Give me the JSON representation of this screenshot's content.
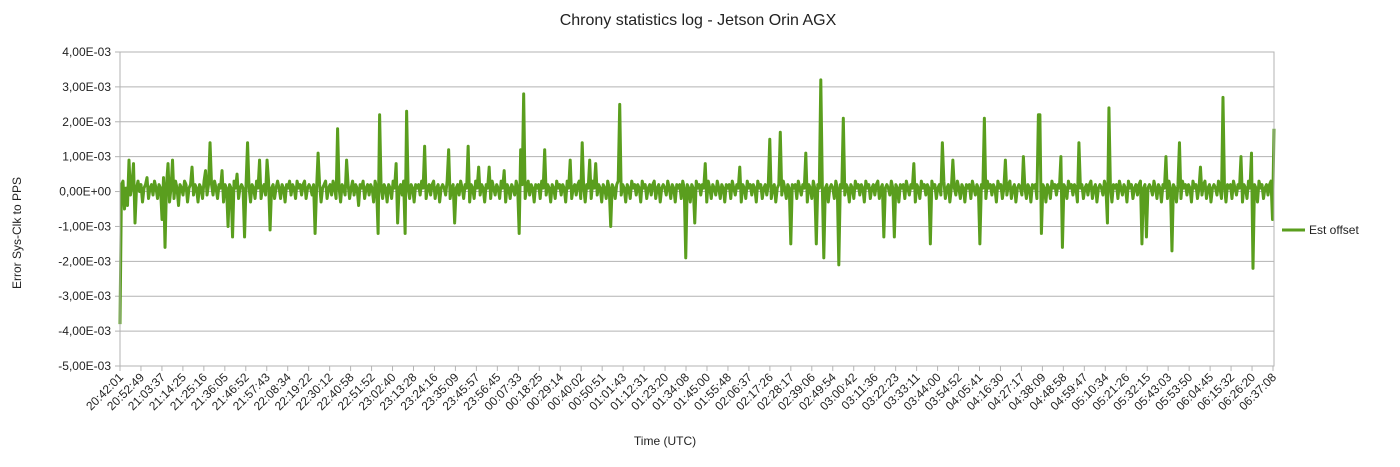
{
  "chart_data": {
    "type": "line",
    "title": "Chrony statistics log - Jetson Orin AGX",
    "xlabel": "Time (UTC)",
    "ylabel": "Error Sys-Clk to PPS",
    "ylim": [
      -0.005,
      0.004
    ],
    "y_ticks": [
      0.004,
      0.003,
      0.002,
      0.001,
      0,
      -0.001,
      -0.002,
      -0.003,
      -0.004,
      -0.005
    ],
    "y_tick_labels": [
      "4,00E-03",
      "3,00E-03",
      "2,00E-03",
      "1,00E-03",
      "0,00E+00",
      "-1,00E-03",
      "-2,00E-03",
      "-3,00E-03",
      "-4,00E-03",
      "-5,00E-03"
    ],
    "x_tick_labels": [
      "20:42:01",
      "20:52:49",
      "21:03:37",
      "21:14:25",
      "21:25:16",
      "21:36:05",
      "21:46:52",
      "21:57:43",
      "22:08:34",
      "22:19:22",
      "22:30:12",
      "22:40:58",
      "22:51:52",
      "23:02:40",
      "23:13:28",
      "23:24:16",
      "23:35:09",
      "23:45:57",
      "23:56:45",
      "00:07:33",
      "00:18:25",
      "00:29:14",
      "00:40:02",
      "00:50:51",
      "01:01:43",
      "01:12:31",
      "01:23:20",
      "01:34:08",
      "01:45:00",
      "01:55:48",
      "02:06:37",
      "02:17:26",
      "02:28:17",
      "02:39:06",
      "02:49:54",
      "03:00:42",
      "03:11:36",
      "03:22:23",
      "03:33:11",
      "03:44:00",
      "03:54:52",
      "04:05:41",
      "04:16:30",
      "04:27:17",
      "04:38:09",
      "04:48:58",
      "04:59:47",
      "05:10:34",
      "05:21:26",
      "05:32:15",
      "05:43:03",
      "05:53:50",
      "06:04:45",
      "06:15:32",
      "06:26:20",
      "06:37:08"
    ],
    "grid": "horizontal",
    "legend_position": "right",
    "series": [
      {
        "name": "Est offset",
        "color": "#5a9e1e",
        "values": [
          -0.0038,
          0.0002,
          0.0003,
          -0.0005,
          0.0001,
          -0.0004,
          0.0009,
          -0.0001,
          0.0002,
          0.0008,
          -0.0009,
          0.0001,
          0.0003,
          0.0,
          0.0002,
          -0.0003,
          0.0001,
          0.0002,
          0.0004,
          -0.0002,
          0.0001,
          0.0002,
          -0.0001,
          0.0003,
          0.0001,
          -0.0002,
          0.0002,
          0.0001,
          -0.0008,
          0.0004,
          -0.0016,
          0.0002,
          0.0008,
          -0.0003,
          0.0001,
          0.0009,
          -0.0002,
          0.0003,
          0.0001,
          -0.0004,
          0.0002,
          0.0001,
          -0.0001,
          0.0003,
          0.0002,
          -0.0003,
          0.0001,
          0.0002,
          0.0007,
          -0.0001,
          0.0002,
          0.0001,
          -0.0003,
          0.0002,
          0.0001,
          -0.0002,
          0.0003,
          0.0006,
          -0.0001,
          0.0002,
          0.0014,
          0.0002,
          -0.0001,
          0.0003,
          0.0001,
          -0.0002,
          0.0002,
          0.0001,
          0.0006,
          -0.0003,
          0.0002,
          0.0001,
          -0.001,
          0.0002,
          0.0001,
          -0.0013,
          0.0003,
          0.0001,
          0.0005,
          -0.0002,
          0.0001,
          0.0002,
          0.0001,
          -0.0013,
          0.0002,
          0.0014,
          0.0001,
          -0.0003,
          0.0002,
          0.0001,
          -0.0002,
          0.0003,
          0.0001,
          0.0009,
          -0.0002,
          0.0001,
          0.0002,
          -0.0001,
          0.0009,
          0.0003,
          -0.0011,
          0.0001,
          0.0002,
          -0.0002,
          0.0001,
          0.0003,
          0.0001,
          -0.0002,
          0.0002,
          0.0001,
          -0.0003,
          0.0002,
          0.0001,
          0.0003,
          -0.0001,
          0.0002,
          0.0001,
          -0.0002,
          0.0003,
          0.0001,
          0.0002,
          -0.0001,
          0.0002,
          0.0003,
          -0.0002,
          0.0001,
          0.0002,
          0.0001,
          -0.0001,
          0.0002,
          -0.0012,
          0.0001,
          0.0011,
          0.0002,
          -0.0003,
          0.0001,
          0.0002,
          0.0003,
          -0.0002,
          0.0001,
          0.0002,
          -0.0001,
          0.0003,
          0.0001,
          -0.0002,
          0.0018,
          0.0001,
          -0.0003,
          0.0002,
          0.0001,
          -0.0001,
          0.0009,
          0.0002,
          -0.0002,
          0.0001,
          0.0003,
          -0.0001,
          0.0002,
          0.0001,
          -0.0004,
          0.0002,
          0.0001,
          0.0003,
          -0.0002,
          0.0001,
          0.0002,
          -0.0001,
          0.0002,
          0.0001,
          -0.0003,
          0.0003,
          0.0001,
          -0.0012,
          0.0022,
          0.0001,
          -0.0002,
          0.0002,
          0.0001,
          -0.0003,
          0.0002,
          0.0001,
          -0.0002,
          0.0003,
          0.0001,
          0.0008,
          -0.0009,
          0.0001,
          0.0002,
          -0.0001,
          0.0003,
          -0.0012,
          0.0023,
          0.0001,
          -0.0002,
          0.0002,
          0.0001,
          -0.0003,
          0.0002,
          0.0001,
          0.0002,
          -0.0001,
          0.0003,
          0.0001,
          0.0013,
          -0.0002,
          0.0001,
          0.0002,
          -0.0001,
          0.0002,
          0.0003,
          -0.0002,
          0.0001,
          0.0002,
          -0.0003,
          0.0001,
          0.0002,
          0.0001,
          -0.0001,
          0.0003,
          0.0012,
          -0.0002,
          0.0001,
          0.0002,
          -0.0009,
          0.0001,
          0.0002,
          -0.0001,
          0.0003,
          0.0001,
          -0.0002,
          0.0002,
          0.0001,
          0.0013,
          -0.0003,
          0.0002,
          0.0001,
          -0.0002,
          0.0003,
          0.0001,
          0.0007,
          -0.0001,
          0.0002,
          0.0001,
          -0.0003,
          0.0002,
          0.0001,
          0.0007,
          -0.0002,
          0.0003,
          0.0001,
          -0.0001,
          0.0002,
          0.0001,
          -0.0002,
          0.0003,
          0.0001,
          0.0006,
          -0.0003,
          0.0002,
          0.0001,
          -0.0002,
          0.0002,
          0.0001,
          -0.0001,
          0.0003,
          0.0001,
          -0.0012,
          0.0012,
          0.0002,
          0.0028,
          -0.0002,
          0.0001,
          0.0003,
          -0.0001,
          0.0002,
          0.0001,
          -0.0003,
          0.0002,
          0.0001,
          0.0002,
          -0.0002,
          0.0003,
          0.0001,
          0.0012,
          -0.0001,
          0.0002,
          0.0001,
          -0.0003,
          0.0002,
          0.0001,
          -0.0002,
          0.0003,
          0.0001,
          0.0002,
          -0.0001,
          0.0002,
          0.0001,
          -0.0003,
          0.0003,
          0.0001,
          0.0009,
          -0.0002,
          0.0001,
          0.0002,
          -0.0001,
          0.0002,
          0.0003,
          -0.0002,
          0.0014,
          0.0001,
          -0.0003,
          0.0002,
          0.0001,
          0.0009,
          -0.0002,
          0.0003,
          0.0001,
          0.0008,
          -0.0001,
          0.0002,
          0.0001,
          -0.0003,
          0.0002,
          0.0001,
          -0.0002,
          0.0003,
          0.0001,
          -0.001,
          0.0002,
          0.0001,
          -0.0002,
          0.0002,
          0.0003,
          0.0025,
          -0.0001,
          0.0002,
          0.0001,
          -0.0003,
          0.0002,
          0.0001,
          -0.0002,
          0.0003,
          0.0001,
          0.0002,
          -0.0001,
          0.0002,
          0.0001,
          -0.0003,
          0.0003,
          0.0001,
          0.0002,
          -0.0002,
          0.0001,
          0.0002,
          -0.0001,
          0.0002,
          0.0003,
          -0.0002,
          0.0001,
          0.0002,
          -0.0003,
          0.0001,
          0.0002,
          0.0001,
          -0.0001,
          0.0003,
          0.0001,
          -0.0002,
          0.0002,
          0.0001,
          -0.0003,
          0.0002,
          0.0001,
          0.0002,
          -0.0002,
          0.0003,
          0.0001,
          -0.0019,
          0.0002,
          0.0001,
          -0.0003,
          0.0002,
          0.0001,
          -0.0009,
          0.0003,
          0.0001,
          0.0002,
          -0.0001,
          0.0002,
          0.0001,
          0.0008,
          -0.0003,
          0.0003,
          0.0001,
          -0.0002,
          0.0002,
          0.0001,
          -0.0001,
          0.0003,
          0.0001,
          -0.0002,
          0.0002,
          0.0001,
          -0.0003,
          0.0002,
          0.0001,
          0.0002,
          -0.0002,
          0.0003,
          0.0001,
          -0.0001,
          0.0002,
          0.0001,
          0.0007,
          -0.0003,
          0.0002,
          0.0001,
          -0.0002,
          0.0003,
          0.0001,
          0.0002,
          -0.0001,
          0.0002,
          0.0001,
          -0.0003,
          0.0003,
          0.0001,
          0.0002,
          -0.0002,
          0.0001,
          0.0002,
          -0.0001,
          0.0002,
          0.0015,
          -0.0002,
          0.0001,
          0.0002,
          -0.0003,
          0.0001,
          0.0002,
          0.0017,
          -0.0001,
          0.0003,
          0.0001,
          -0.0002,
          0.0002,
          0.0001,
          -0.0015,
          0.0002,
          0.0001,
          0.0002,
          -0.0002,
          0.0003,
          0.0001,
          -0.0001,
          0.0002,
          0.0001,
          0.0011,
          -0.0003,
          0.0002,
          0.0001,
          -0.0002,
          0.0003,
          0.0001,
          -0.0015,
          0.0002,
          0.0001,
          0.0032,
          0.0002,
          -0.0019,
          0.0001,
          0.0002,
          -0.0003,
          0.0001,
          0.0002,
          0.0001,
          -0.0002,
          0.0003,
          0.0001,
          -0.0021,
          0.0002,
          0.0001,
          0.0021,
          -0.0001,
          0.0002,
          0.0001,
          -0.0003,
          0.0002,
          0.0001,
          -0.0002,
          0.0003,
          0.0001,
          0.0002,
          -0.0001,
          0.0002,
          0.0001,
          -0.0003,
          0.0003,
          0.0001,
          0.0002,
          -0.0002,
          0.0001,
          0.0002,
          -0.0001,
          0.0002,
          0.0003,
          -0.0002,
          0.0001,
          0.0002,
          -0.0013,
          0.0001,
          0.0002,
          0.0001,
          -0.0001,
          0.0003,
          0.0001,
          -0.0013,
          0.0002,
          0.0001,
          -0.0003,
          0.0002,
          0.0001,
          0.0002,
          -0.0002,
          0.0003,
          0.0001,
          -0.0001,
          0.0002,
          0.0001,
          0.0008,
          -0.0003,
          0.0002,
          0.0001,
          -0.0002,
          0.0003,
          0.0001,
          0.0002,
          -0.0001,
          0.0002,
          0.0001,
          -0.0015,
          0.0003,
          0.0001,
          0.0002,
          -0.0002,
          0.0001,
          0.0002,
          -0.0001,
          0.0014,
          0.0003,
          -0.0002,
          0.0001,
          0.0002,
          -0.0003,
          0.0001,
          0.0009,
          0.0001,
          -0.0001,
          0.0003,
          0.0001,
          -0.0002,
          0.0002,
          0.0001,
          -0.0003,
          0.0002,
          0.0001,
          0.0002,
          -0.0002,
          0.0003,
          0.0001,
          -0.0001,
          0.0002,
          0.0001,
          -0.0015,
          0.0002,
          0.0001,
          0.0021,
          -0.0002,
          0.0003,
          0.0001,
          0.0002,
          -0.0001,
          0.0002,
          0.0001,
          -0.0003,
          0.0003,
          0.0001,
          0.0002,
          -0.0002,
          0.0001,
          0.0009,
          -0.0001,
          0.0002,
          0.0003,
          -0.0002,
          0.0001,
          0.0002,
          -0.0003,
          0.0001,
          0.0002,
          0.0001,
          -0.0001,
          0.001,
          0.0001,
          -0.0002,
          0.0002,
          0.0001,
          -0.0003,
          0.0002,
          0.0001,
          0.0002,
          -0.0002,
          0.0022,
          0.0022,
          -0.0012,
          0.0002,
          0.0001,
          -0.0003,
          0.0002,
          0.0001,
          -0.0002,
          0.0003,
          0.0001,
          0.0002,
          -0.0001,
          0.0002,
          0.0001,
          0.001,
          -0.0016,
          0.0002,
          0.0001,
          -0.0002,
          0.0003,
          0.0001,
          0.0002,
          -0.0001,
          0.0002,
          0.0001,
          -0.0003,
          0.0014,
          0.0001,
          0.0002,
          -0.0002,
          0.0001,
          0.0002,
          -0.0001,
          0.0002,
          0.0003,
          -0.0002,
          0.0001,
          0.0002,
          -0.0003,
          0.0001,
          0.0002,
          0.0001,
          -0.0001,
          0.0003,
          0.0001,
          -0.0009,
          0.0024,
          0.0001,
          -0.0003,
          0.0002,
          0.0001,
          0.0002,
          -0.0002,
          0.0003,
          0.0001,
          -0.0001,
          0.0002,
          0.0001,
          -0.0003,
          0.0003,
          0.0001,
          0.0002,
          -0.0002,
          0.0001,
          0.0002,
          -0.0001,
          0.0002,
          0.0003,
          -0.0015,
          0.0001,
          0.0002,
          -0.0013,
          0.0001,
          0.0002,
          0.0001,
          -0.0001,
          0.0003,
          0.0001,
          -0.0002,
          0.0002,
          0.0001,
          -0.0003,
          0.0002,
          0.0001,
          0.001,
          -0.0002,
          0.0003,
          0.0001,
          -0.0017,
          0.0002,
          0.0001,
          -0.0003,
          0.0002,
          0.0014,
          -0.0002,
          0.0003,
          0.0001,
          0.0002,
          -0.0001,
          0.0002,
          0.0001,
          -0.0003,
          0.0003,
          0.0001,
          0.0002,
          -0.0002,
          0.0001,
          0.0007,
          -0.0001,
          0.0002,
          0.0003,
          -0.0002,
          0.0001,
          0.0002,
          -0.0003,
          0.0001,
          0.0002,
          0.0001,
          -0.0001,
          0.0003,
          0.0001,
          -0.0002,
          0.0027,
          0.0001,
          -0.0003,
          0.0002,
          0.0001,
          0.0002,
          -0.0002,
          0.0003,
          0.0001,
          -0.0001,
          0.0002,
          0.0001,
          0.001,
          -0.0003,
          0.0002,
          0.0001,
          -0.0002,
          0.0003,
          0.0001,
          0.0011,
          -0.0022,
          0.0002,
          0.0001,
          -0.0003,
          0.0003,
          0.0001,
          0.0002,
          -0.0002,
          0.0001,
          0.0002,
          -0.0001,
          0.0002,
          0.0003,
          -0.0008,
          0.0018
        ]
      }
    ]
  }
}
